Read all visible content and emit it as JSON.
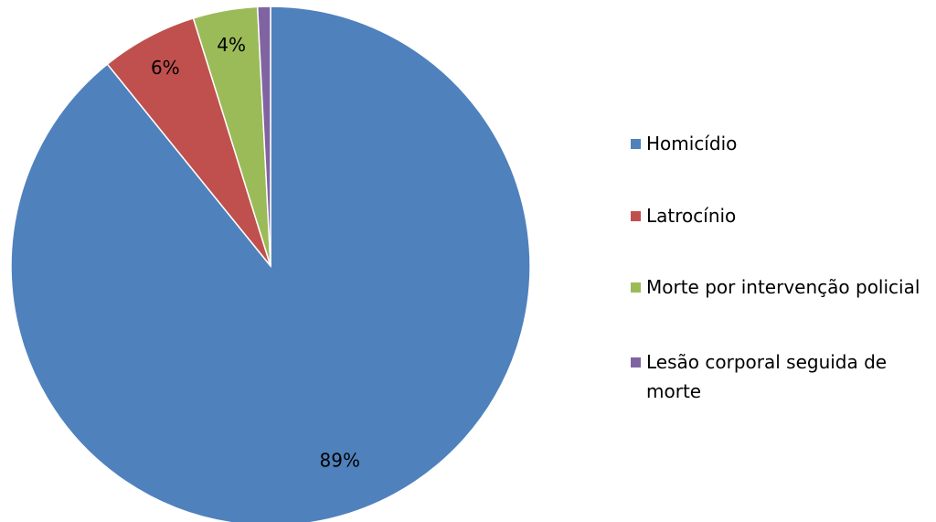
{
  "chart_data": {
    "type": "pie",
    "categories": [
      "Homicídio",
      "Latrocínio",
      "Morte por intervenção policial",
      "Lesão corporal seguida de morte"
    ],
    "values": [
      89,
      6,
      4,
      0.8
    ],
    "value_labels": [
      "89%",
      "6%",
      "4%",
      null
    ],
    "colors": [
      "#4f81bd",
      "#c0504d",
      "#9bbb59",
      "#8064a2"
    ],
    "legend": "right"
  }
}
